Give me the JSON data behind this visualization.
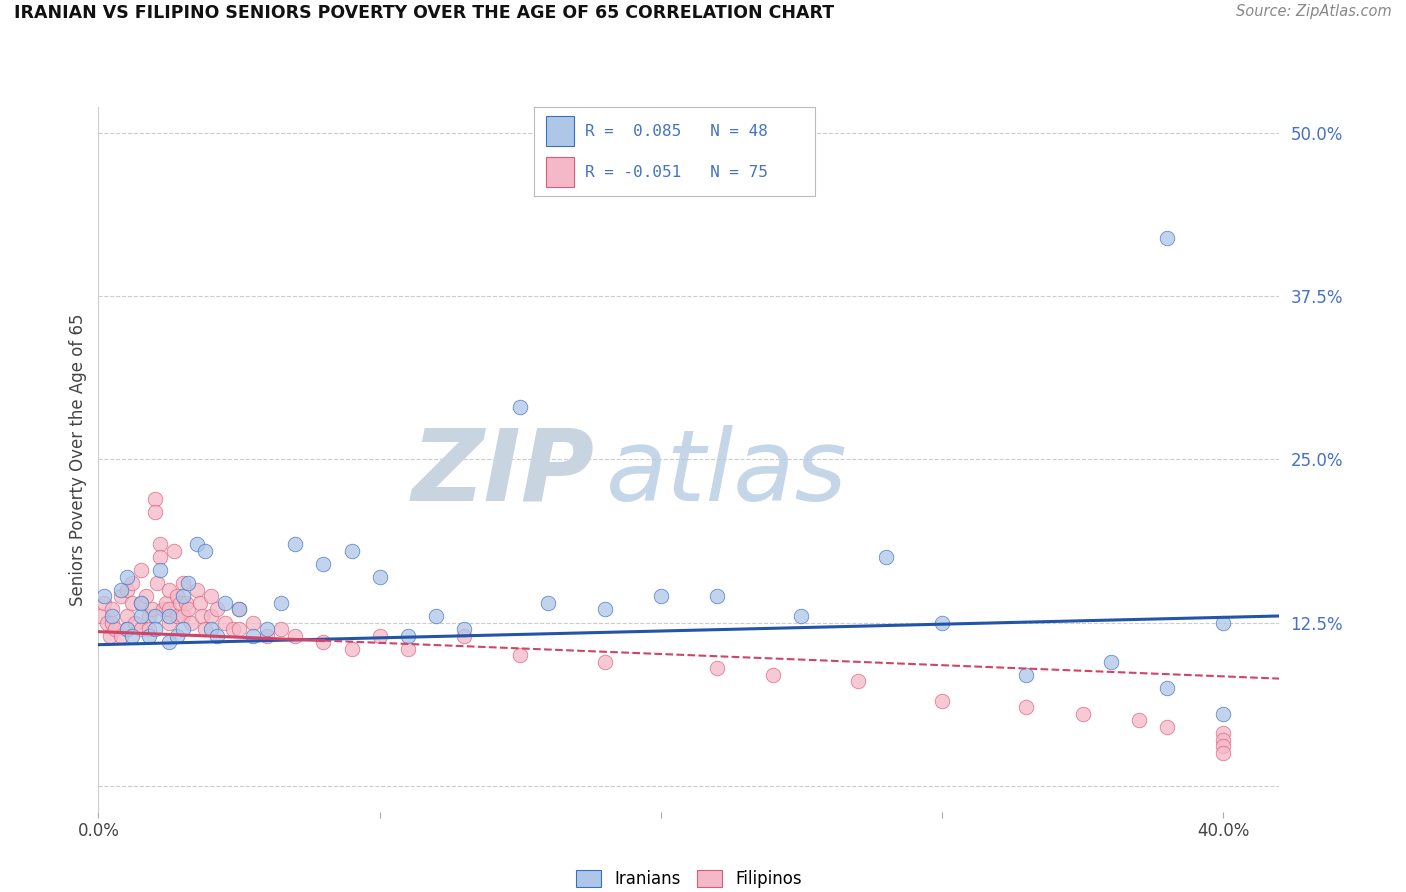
{
  "title": "IRANIAN VS FILIPINO SENIORS POVERTY OVER THE AGE OF 65 CORRELATION CHART",
  "source": "Source: ZipAtlas.com",
  "ylabel": "Seniors Poverty Over the Age of 65",
  "xlim": [
    0.0,
    0.42
  ],
  "ylim": [
    -0.02,
    0.52
  ],
  "ytick_vals": [
    0.0,
    0.125,
    0.25,
    0.375,
    0.5
  ],
  "ytick_labels": [
    "",
    "12.5%",
    "25.0%",
    "37.5%",
    "50.0%"
  ],
  "xtick_vals": [
    0.0,
    0.1,
    0.2,
    0.3,
    0.4
  ],
  "xtick_labels": [
    "0.0%",
    "",
    "",
    "",
    "40.0%"
  ],
  "iranian_R": 0.085,
  "iranian_N": 48,
  "filipino_R": -0.051,
  "filipino_N": 75,
  "iranian_color": "#aec6e8",
  "filipino_color": "#f5b8c8",
  "iranian_edge_color": "#3a6fbd",
  "filipino_edge_color": "#d95b7a",
  "iranian_line_color": "#2255aa",
  "filipino_line_color": "#d04468",
  "background_color": "#ffffff",
  "grid_color": "#cccccc",
  "iranian_scatter_x": [
    0.002,
    0.005,
    0.008,
    0.01,
    0.01,
    0.012,
    0.015,
    0.015,
    0.018,
    0.02,
    0.02,
    0.022,
    0.025,
    0.025,
    0.028,
    0.03,
    0.03,
    0.032,
    0.035,
    0.038,
    0.04,
    0.042,
    0.045,
    0.05,
    0.055,
    0.06,
    0.065,
    0.07,
    0.08,
    0.09,
    0.1,
    0.11,
    0.12,
    0.13,
    0.15,
    0.16,
    0.18,
    0.2,
    0.22,
    0.25,
    0.28,
    0.3,
    0.33,
    0.36,
    0.38,
    0.4,
    0.4,
    0.38
  ],
  "iranian_scatter_y": [
    0.145,
    0.13,
    0.15,
    0.12,
    0.16,
    0.115,
    0.13,
    0.14,
    0.115,
    0.13,
    0.12,
    0.165,
    0.11,
    0.13,
    0.115,
    0.145,
    0.12,
    0.155,
    0.185,
    0.18,
    0.12,
    0.115,
    0.14,
    0.135,
    0.115,
    0.12,
    0.14,
    0.185,
    0.17,
    0.18,
    0.16,
    0.115,
    0.13,
    0.12,
    0.29,
    0.14,
    0.135,
    0.145,
    0.145,
    0.13,
    0.175,
    0.125,
    0.085,
    0.095,
    0.075,
    0.055,
    0.125,
    0.42
  ],
  "filipino_scatter_x": [
    0.001,
    0.002,
    0.003,
    0.004,
    0.005,
    0.005,
    0.006,
    0.008,
    0.008,
    0.01,
    0.01,
    0.01,
    0.012,
    0.012,
    0.013,
    0.015,
    0.015,
    0.015,
    0.017,
    0.018,
    0.018,
    0.019,
    0.02,
    0.02,
    0.021,
    0.022,
    0.022,
    0.023,
    0.024,
    0.025,
    0.025,
    0.025,
    0.027,
    0.028,
    0.028,
    0.029,
    0.03,
    0.03,
    0.031,
    0.032,
    0.033,
    0.035,
    0.036,
    0.037,
    0.038,
    0.04,
    0.04,
    0.042,
    0.045,
    0.048,
    0.05,
    0.05,
    0.055,
    0.06,
    0.065,
    0.07,
    0.08,
    0.09,
    0.1,
    0.11,
    0.13,
    0.15,
    0.18,
    0.22,
    0.24,
    0.27,
    0.3,
    0.33,
    0.35,
    0.37,
    0.38,
    0.4,
    0.4,
    0.4,
    0.4
  ],
  "filipino_scatter_y": [
    0.13,
    0.14,
    0.125,
    0.115,
    0.135,
    0.125,
    0.12,
    0.145,
    0.115,
    0.15,
    0.13,
    0.12,
    0.155,
    0.14,
    0.125,
    0.165,
    0.14,
    0.12,
    0.145,
    0.13,
    0.12,
    0.135,
    0.22,
    0.21,
    0.155,
    0.185,
    0.175,
    0.135,
    0.14,
    0.15,
    0.135,
    0.125,
    0.18,
    0.145,
    0.13,
    0.14,
    0.155,
    0.13,
    0.14,
    0.135,
    0.125,
    0.15,
    0.14,
    0.13,
    0.12,
    0.145,
    0.13,
    0.135,
    0.125,
    0.12,
    0.135,
    0.12,
    0.125,
    0.115,
    0.12,
    0.115,
    0.11,
    0.105,
    0.115,
    0.105,
    0.115,
    0.1,
    0.095,
    0.09,
    0.085,
    0.08,
    0.065,
    0.06,
    0.055,
    0.05,
    0.045,
    0.04,
    0.035,
    0.03,
    0.025
  ],
  "iran_trend_x0": 0.0,
  "iran_trend_y0": 0.108,
  "iran_trend_x1": 0.42,
  "iran_trend_y1": 0.13,
  "fil_trend_x0": 0.0,
  "fil_trend_y0": 0.118,
  "fil_trend_x1": 0.42,
  "fil_trend_y1": 0.082
}
